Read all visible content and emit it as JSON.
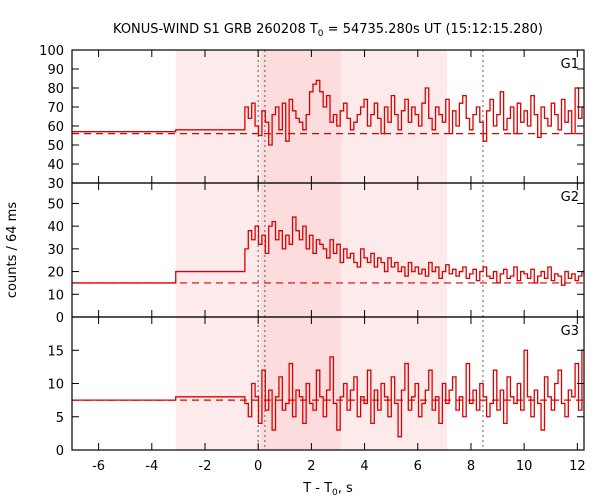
{
  "chart_data": {
    "type": "line",
    "style": "step histogram",
    "title_main": "KONUS-WIND S1 GRB 260208 T",
    "title_sub": "0",
    "title_rest": " = 54735.280s UT (15:12:15.280)",
    "xlabel_main": "T - T",
    "xlabel_sub": "0",
    "xlabel_rest": ", s",
    "ylabel": "counts / 64 ms",
    "xlim": [
      -7,
      12.25
    ],
    "xticks": [
      -6,
      -4,
      -2,
      0,
      2,
      4,
      6,
      8,
      10,
      12
    ],
    "shaded_intervals": [
      {
        "from": -3.1,
        "to": 7.1,
        "color": "#fdeaea"
      },
      {
        "from": 0.1,
        "to": 3.1,
        "color": "#fcdcdc"
      }
    ],
    "dotted_lines_x": [
      0,
      0.25,
      8.45
    ],
    "line_color": "#dd0000",
    "bin_width": 0.128,
    "burst_start": -0.5,
    "panels": [
      {
        "name": "G1",
        "ylim": [
          30,
          100
        ],
        "yticks": [
          30,
          40,
          50,
          60,
          70,
          80,
          90,
          100
        ],
        "background": 56,
        "pre_segments": [
          [
            -7,
            -3.1,
            57
          ],
          [
            -3.1,
            -0.5,
            58
          ]
        ],
        "values": [
          70,
          64,
          72,
          60,
          55,
          68,
          62,
          50,
          66,
          70,
          58,
          72,
          52,
          74,
          68,
          64,
          62,
          58,
          66,
          78,
          82,
          84,
          78,
          70,
          76,
          62,
          66,
          60,
          68,
          72,
          64,
          58,
          62,
          66,
          70,
          74,
          60,
          66,
          72,
          64,
          56,
          70,
          62,
          76,
          66,
          58,
          68,
          74,
          62,
          70,
          66,
          60,
          72,
          80,
          64,
          58,
          70,
          66,
          62,
          74,
          56,
          68,
          60,
          72,
          76,
          64,
          58,
          66,
          70,
          62,
          52,
          68,
          74,
          60,
          66,
          78,
          58,
          64,
          70,
          56,
          72,
          62,
          68,
          60,
          76,
          66,
          54,
          70,
          64,
          60,
          72,
          66,
          58,
          74,
          62,
          68,
          56,
          80,
          64,
          70
        ]
      },
      {
        "name": "G2",
        "ylim": [
          0,
          59
        ],
        "yticks": [
          0,
          10,
          20,
          30,
          40,
          50
        ],
        "background": 15,
        "pre_segments": [
          [
            -7,
            -3.1,
            15
          ],
          [
            -3.1,
            -0.5,
            20
          ]
        ],
        "values": [
          30,
          38,
          34,
          40,
          32,
          36,
          28,
          40,
          42,
          34,
          38,
          30,
          36,
          32,
          44,
          38,
          34,
          40,
          30,
          36,
          28,
          34,
          32,
          30,
          26,
          34,
          28,
          32,
          24,
          30,
          26,
          28,
          24,
          22,
          30,
          26,
          24,
          28,
          22,
          26,
          24,
          20,
          26,
          22,
          24,
          20,
          22,
          18,
          24,
          20,
          22,
          19,
          21,
          18,
          24,
          20,
          22,
          17,
          20,
          23,
          19,
          21,
          18,
          20,
          22,
          17,
          19,
          21,
          16,
          20,
          22,
          18,
          17,
          20,
          15,
          19,
          21,
          17,
          18,
          22,
          16,
          20,
          19,
          17,
          21,
          15,
          18,
          20,
          17,
          22,
          16,
          19,
          18,
          14,
          20,
          17,
          19,
          16,
          18,
          20
        ]
      },
      {
        "name": "G3",
        "ylim": [
          0,
          20
        ],
        "yticks": [
          0,
          5,
          10,
          15
        ],
        "background": 7.5,
        "pre_segments": [
          [
            -7,
            -3.1,
            7.5
          ],
          [
            -3.1,
            -0.5,
            8
          ]
        ],
        "values": [
          7,
          5,
          10,
          8,
          4,
          12,
          6,
          9,
          3,
          8,
          11,
          6,
          7,
          13,
          5,
          9,
          8,
          4,
          10,
          7,
          6,
          12,
          8,
          5,
          9,
          14,
          7,
          3,
          8,
          10,
          6,
          9,
          11,
          5,
          8,
          7,
          12,
          4,
          9,
          6,
          10,
          8,
          5,
          11,
          7,
          2,
          9,
          13,
          6,
          8,
          10,
          5,
          7,
          9,
          12,
          6,
          8,
          4,
          10,
          7,
          9,
          11,
          6,
          8,
          5,
          13,
          7,
          9,
          6,
          10,
          8,
          5,
          7,
          12,
          6,
          9,
          4,
          11,
          8,
          7,
          10,
          6,
          15,
          8,
          5,
          9,
          7,
          3,
          11,
          8,
          6,
          10,
          12,
          7,
          5,
          9,
          8,
          13,
          6,
          15
        ]
      }
    ]
  }
}
